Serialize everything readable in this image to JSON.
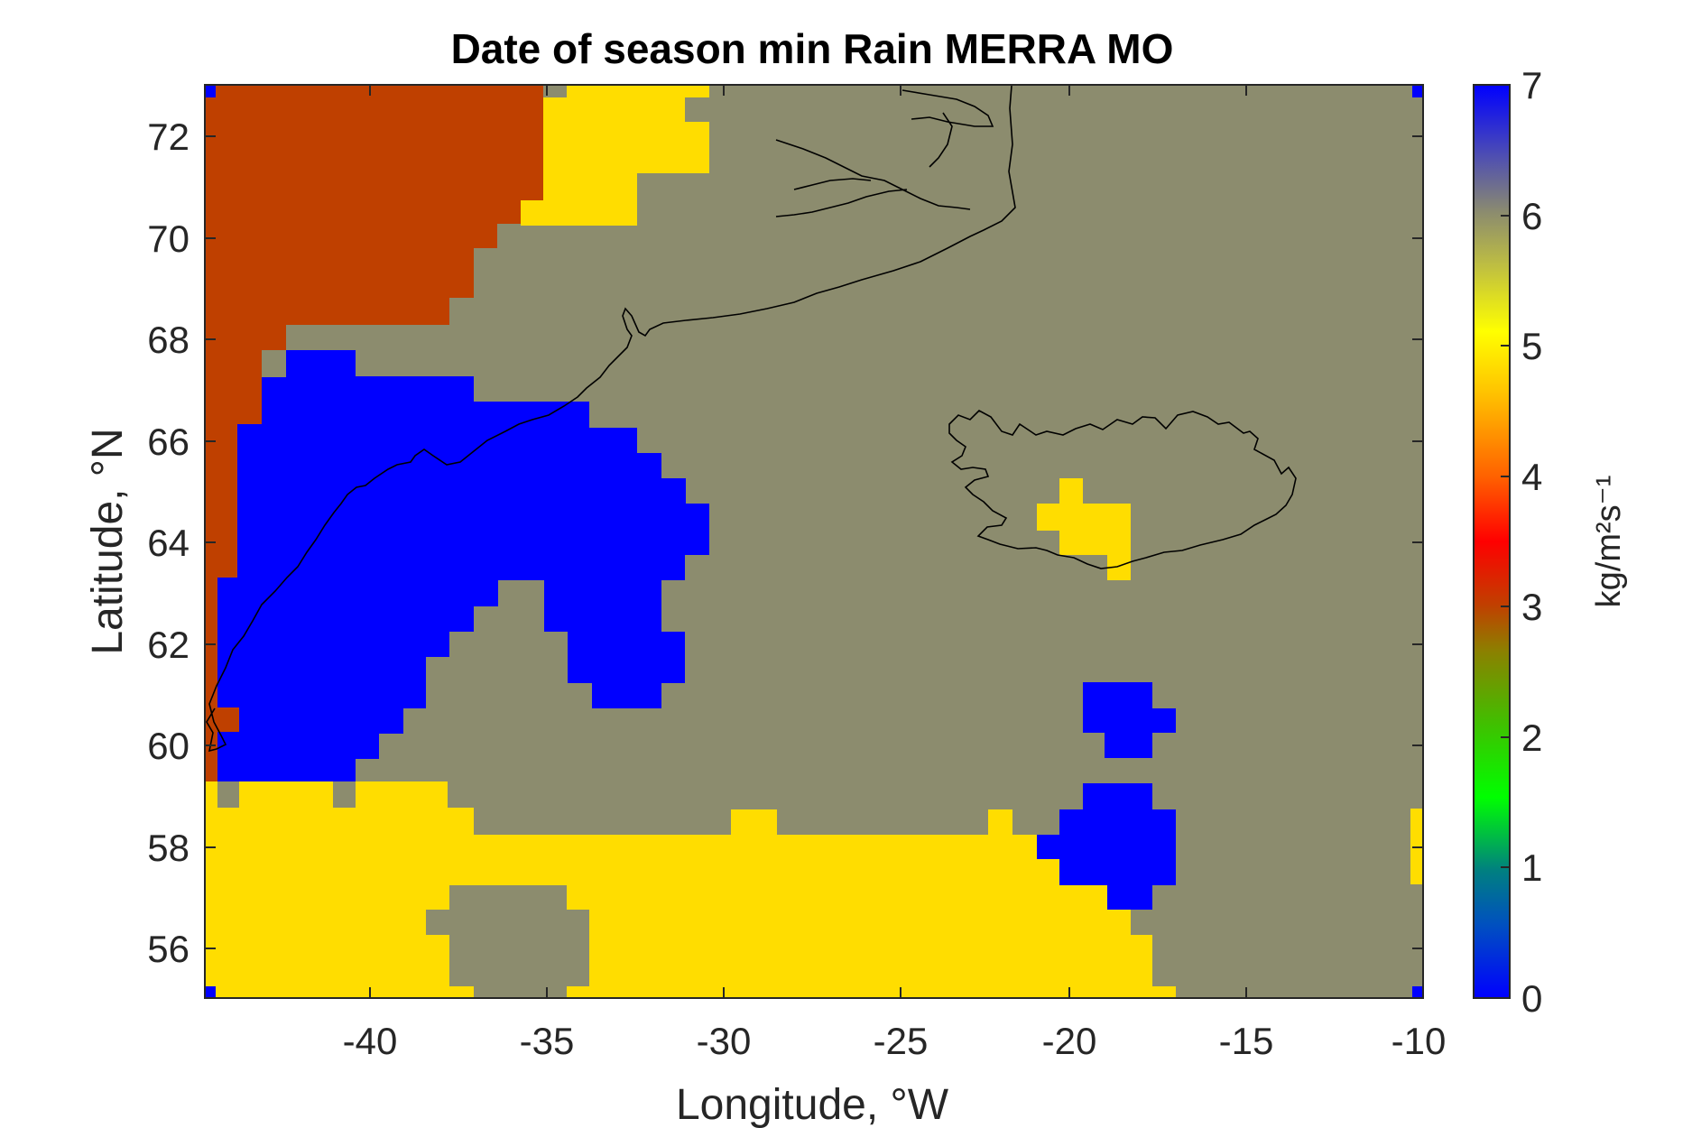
{
  "chart_data": {
    "type": "heatmap",
    "title": "Date of season min Rain MERRA MO",
    "xlabel": "Longitude, °W",
    "ylabel": "Latitude, °N",
    "xlim": [
      -44.5,
      -10
    ],
    "ylim": [
      55,
      73
    ],
    "x_ticks": [
      "-40",
      "-35",
      "-30",
      "-25",
      "-20",
      "-15",
      "-10"
    ],
    "y_ticks": [
      "56",
      "58",
      "60",
      "62",
      "64",
      "66",
      "68",
      "70",
      "72"
    ],
    "colorbar": {
      "label": "kg/m²s⁻¹",
      "min": 0,
      "max": 7,
      "ticks": [
        "0",
        "1",
        "2",
        "3",
        "4",
        "5",
        "6",
        "7"
      ],
      "colormap": [
        "#0000ff",
        "#00a0a0",
        "#00ff00",
        "#c0a000",
        "#ff0000",
        "#ff8000",
        "#ffe600",
        "#8c8c6e",
        "#0000ff"
      ]
    },
    "value_colors": {
      "3": "#bf4000",
      "5": "#ffdd00",
      "6": "#8c8c6e",
      "7": "#0000ff"
    },
    "background_value": 6,
    "regions": [
      {
        "value": 3,
        "description_lon": [
          -44.5,
          -35
        ],
        "description_lat": [
          68.2,
          73
        ]
      },
      {
        "value": 5,
        "description_lon": [
          -35.5,
          -30.5
        ],
        "description_lat": [
          70.5,
          73
        ]
      },
      {
        "value": 7,
        "description_lon": [
          -44.5,
          -30.5
        ],
        "description_lat": [
          58.8,
          67.8
        ]
      },
      {
        "value": 7,
        "description_lon": [
          -34,
          -31
        ],
        "description_lat": [
          60.8,
          62.8
        ]
      },
      {
        "value": 5,
        "description_lon": [
          -21,
          -18.5
        ],
        "description_lat": [
          63.3,
          65.2
        ]
      },
      {
        "value": 7,
        "description_lon": [
          -19.5,
          -17
        ],
        "description_lat": [
          59.8,
          61.3
        ]
      },
      {
        "value": 7,
        "description_lon": [
          -21,
          -17
        ],
        "description_lat": [
          56.8,
          59.3
        ]
      },
      {
        "value": 5,
        "description_lon": [
          -44.5,
          -17
        ],
        "description_lat": [
          55,
          59.3
        ]
      },
      {
        "value": 6,
        "description_lon": [
          -38.5,
          -33.5
        ],
        "description_lat": [
          55,
          57.3
        ]
      }
    ]
  }
}
